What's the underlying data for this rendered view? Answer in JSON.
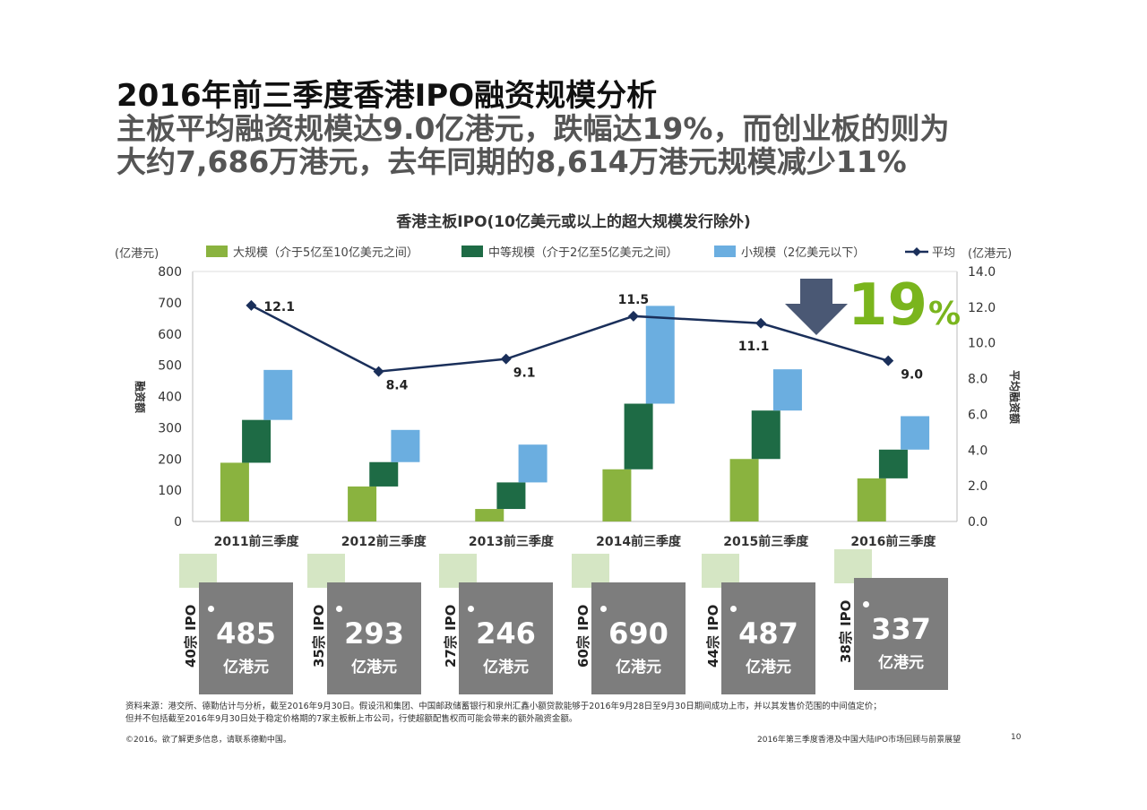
{
  "title": {
    "line1": "2016年前三季度香港IPO融资规模分析",
    "line2": "主板平均融资规模达9.0亿港元，跌幅达19%，而创业板的则为",
    "line3": "大约7,686万港元，去年同期的8,614万港元规模减少11%"
  },
  "chart_data": {
    "type": "bar",
    "title": "香港主板IPO(10亿美元或以上的超大规模发行除外)",
    "categories": [
      "2011前三季度",
      "2012前三季度",
      "2013前三季度",
      "2014前三季度",
      "2015前三季度",
      "2016前三季度"
    ],
    "series": [
      {
        "name": "大规模（介于5亿至10亿美元之间）",
        "type": "stacked-bar",
        "color": "#8ab33f",
        "values": [
          188,
          112,
          40,
          167,
          200,
          138
        ]
      },
      {
        "name": "中等规模（介于2亿至5亿美元之间）",
        "type": "stacked-bar",
        "color": "#1e6b45",
        "values": [
          137,
          78,
          85,
          210,
          155,
          92
        ]
      },
      {
        "name": "小规模（2亿美元以下）",
        "type": "stacked-bar",
        "color": "#6baee0",
        "values": [
          160,
          103,
          121,
          313,
          132,
          107
        ]
      },
      {
        "name": "平均",
        "type": "line",
        "axis": "right",
        "color": "#1a2f5a",
        "values": [
          12.1,
          8.4,
          9.1,
          11.5,
          11.1,
          9.0
        ]
      }
    ],
    "y_left": {
      "label": "融资额",
      "unit": "(亿港元)",
      "range": [
        0,
        800
      ],
      "ticks": [
        "0",
        "100",
        "200",
        "300",
        "400",
        "500",
        "600",
        "700",
        "800"
      ]
    },
    "y_right": {
      "label": "平均融资额",
      "unit": "(亿港元)",
      "range": [
        0,
        14
      ],
      "ticks": [
        "0.0",
        "2.0",
        "4.0",
        "6.0",
        "8.0",
        "10.0",
        "12.0",
        "14.0"
      ]
    },
    "line_labels": [
      "12.1",
      "8.4",
      "9.1",
      "11.5",
      "11.1",
      "9.0"
    ],
    "annotation": {
      "text": "19",
      "suffix": "%",
      "color": "#7ab51d",
      "arrow_color": "#4a5874"
    },
    "grid": false,
    "legend": "top"
  },
  "totals": [
    {
      "value": "485",
      "unit": "亿港元",
      "deals": "40宗 IPO"
    },
    {
      "value": "293",
      "unit": "亿港元",
      "deals": "35宗 IPO"
    },
    {
      "value": "246",
      "unit": "亿港元",
      "deals": "27宗 IPO"
    },
    {
      "value": "690",
      "unit": "亿港元",
      "deals": "60宗 IPO"
    },
    {
      "value": "487",
      "unit": "亿港元",
      "deals": "44宗 IPO"
    },
    {
      "value": "337",
      "unit": "亿港元",
      "deals": "38宗 IPO"
    }
  ],
  "footnote": {
    "line1": "资料来源：港交所、德勤估计与分析，截至2016年9月30日。假设汛和集团、中国邮政储蓄银行和泉州汇鑫小额贷款能够于2016年9月28日至9月30日期间成功上市，并以其发售价范围的中间值定价；",
    "line2": "但并不包括截至2016年9月30日处于稳定价格期的7家主板新上市公司，行使超额配售权而可能会带来的额外融资金额。"
  },
  "footer": {
    "left": "©2016。欲了解更多信息，请联系德勤中国。",
    "right": "2016年第三季度香港及中国大陆IPO市场回顾与前景展望",
    "page": "10"
  }
}
